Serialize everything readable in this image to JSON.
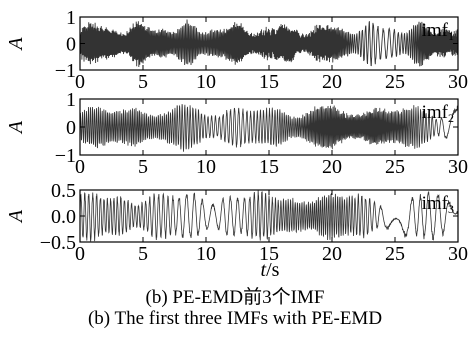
{
  "chart_data": [
    {
      "type": "line",
      "series": [
        {
          "name": "imf1"
        }
      ],
      "label_main": "imf",
      "label_sub": "1",
      "ylabel": "A",
      "xlim": [
        0,
        30
      ],
      "ylim": [
        -1,
        1
      ],
      "xticks": [
        "0",
        "5",
        "10",
        "15",
        "20",
        "25",
        "30"
      ],
      "yticks": [
        "1",
        "0",
        "−1"
      ],
      "ytick_values": [
        1,
        0,
        -1
      ],
      "grid": false
    },
    {
      "type": "line",
      "series": [
        {
          "name": "imf2"
        }
      ],
      "label_main": "imf",
      "label_sub": "2",
      "ylabel": "A",
      "xlim": [
        0,
        30
      ],
      "ylim": [
        -1,
        1
      ],
      "xticks": [
        "0",
        "5",
        "10",
        "15",
        "20",
        "25",
        "30"
      ],
      "yticks": [
        "1",
        "0",
        "−1"
      ],
      "ytick_values": [
        1,
        0,
        -1
      ],
      "grid": false
    },
    {
      "type": "line",
      "series": [
        {
          "name": "imf3"
        }
      ],
      "label_main": "imf",
      "label_sub": "3",
      "ylabel": "A",
      "xlim": [
        0,
        30
      ],
      "ylim": [
        -0.5,
        0.5
      ],
      "xticks": [
        "0",
        "5",
        "10",
        "15",
        "20",
        "25",
        "30"
      ],
      "yticks": [
        "0.5",
        "0.0",
        "−0.5"
      ],
      "ytick_values": [
        0.5,
        0,
        -0.5
      ],
      "grid": false
    }
  ],
  "xlabel_italic": "t",
  "xlabel_unit": "/s",
  "caption_cn": "(b) PE-EMD前3个IMF",
  "caption_en": "(b) The first three IMFs with PE-EMD"
}
